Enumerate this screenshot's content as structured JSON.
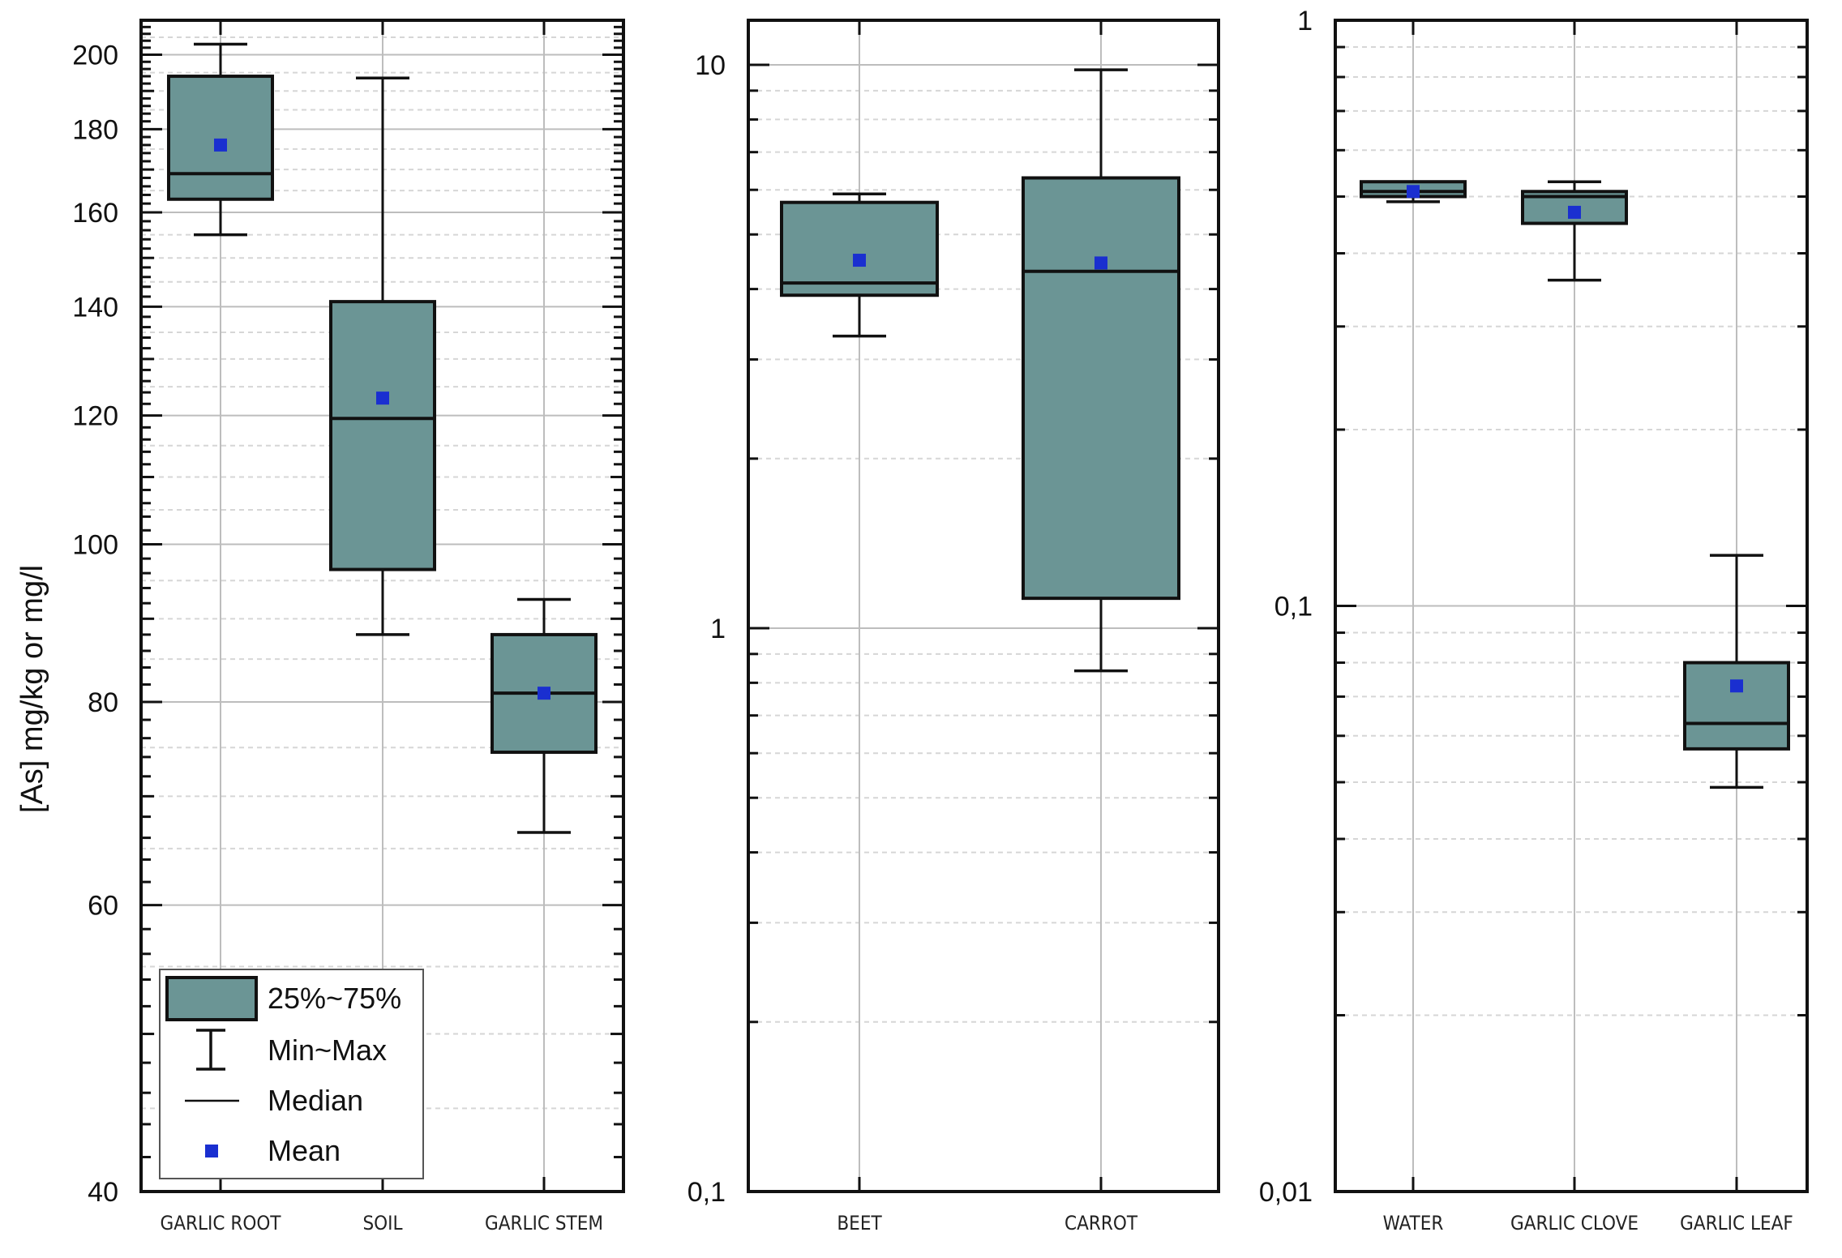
{
  "chart_data": [
    {
      "type": "box",
      "panel": "left",
      "ylabel": "[As] mg/kg or mg/l",
      "yscale": "log",
      "ylim": [
        40,
        210
      ],
      "yticks": [
        40,
        60,
        80,
        100,
        120,
        140,
        160,
        180,
        200
      ],
      "ytick_labels": [
        "40",
        "60",
        "80",
        "100",
        "120",
        "140",
        "160",
        "180",
        "200"
      ],
      "categories": [
        "GARLIC ROOT",
        "SOIL",
        "GARLIC STEM"
      ],
      "boxes": [
        {
          "min": 155,
          "q1": 163,
          "median": 169,
          "q3": 194,
          "max": 203,
          "mean": 176
        },
        {
          "min": 88,
          "q1": 96.5,
          "median": 119.5,
          "q3": 141,
          "max": 193.5,
          "mean": 123
        },
        {
          "min": 66.5,
          "q1": 74.5,
          "median": 81,
          "q3": 88,
          "max": 92.5,
          "mean": 81
        }
      ],
      "legend": {
        "placement": "bottom-left",
        "items": [
          {
            "key": "box",
            "label": "25%~75%"
          },
          {
            "key": "whisker",
            "label": "Min~Max"
          },
          {
            "key": "median",
            "label": "Median"
          },
          {
            "key": "mean",
            "label": "Mean"
          }
        ]
      },
      "grid": true
    },
    {
      "type": "box",
      "panel": "middle",
      "yscale": "log",
      "ylim": [
        0.1,
        12
      ],
      "yticks": [
        0.1,
        1,
        10
      ],
      "ytick_labels": [
        "0,1",
        "1",
        "10"
      ],
      "categories": [
        "BEET",
        "CARROT"
      ],
      "boxes": [
        {
          "min": 3.3,
          "q1": 3.9,
          "median": 4.1,
          "q3": 5.7,
          "max": 5.9,
          "mean": 4.5
        },
        {
          "min": 0.84,
          "q1": 1.13,
          "median": 4.3,
          "q3": 6.3,
          "max": 9.8,
          "mean": 4.45
        }
      ],
      "grid": true
    },
    {
      "type": "box",
      "panel": "right",
      "yscale": "log",
      "ylim": [
        0.01,
        1
      ],
      "yticks": [
        0.01,
        0.1,
        1
      ],
      "ytick_labels": [
        "0,01",
        "0,1",
        "1"
      ],
      "categories": [
        "WATER",
        "GARLIC CLOVE",
        "GARLIC LEAF"
      ],
      "boxes": [
        {
          "min": 0.49,
          "q1": 0.5,
          "median": 0.51,
          "q3": 0.53,
          "max": 0.53,
          "mean": 0.51
        },
        {
          "min": 0.36,
          "q1": 0.45,
          "median": 0.5,
          "q3": 0.51,
          "max": 0.53,
          "mean": 0.47
        },
        {
          "min": 0.049,
          "q1": 0.057,
          "median": 0.063,
          "q3": 0.08,
          "max": 0.122,
          "mean": 0.073
        }
      ],
      "grid": true
    }
  ],
  "colors": {
    "box_fill": "#6b9595",
    "mean_marker": "#1a2fd0",
    "stroke": "#111111",
    "major_grid": "#bdbdbd",
    "minor_grid": "#d6d6d6"
  }
}
